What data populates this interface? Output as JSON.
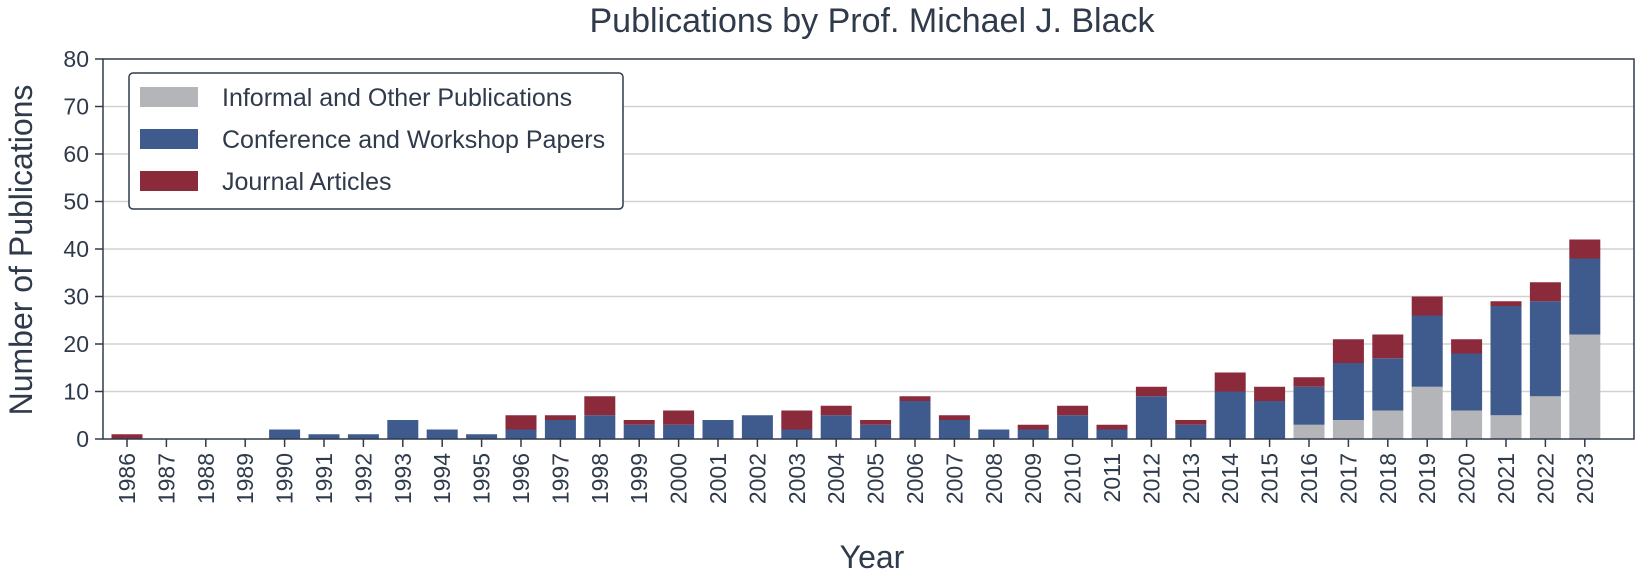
{
  "chart_data": {
    "type": "bar",
    "stacked": true,
    "title": "Publications by Prof. Michael J. Black",
    "xlabel": "Year",
    "ylabel": "Number of Publications",
    "ylim": [
      0,
      80
    ],
    "yticks": [
      0,
      10,
      20,
      30,
      40,
      50,
      60,
      70,
      80
    ],
    "grid": "y",
    "legend_position": "top-left",
    "categories": [
      "1986",
      "1987",
      "1988",
      "1989",
      "1990",
      "1991",
      "1992",
      "1993",
      "1994",
      "1995",
      "1996",
      "1997",
      "1998",
      "1999",
      "2000",
      "2001",
      "2002",
      "2003",
      "2004",
      "2005",
      "2006",
      "2007",
      "2008",
      "2009",
      "2010",
      "2011",
      "2012",
      "2013",
      "2014",
      "2015",
      "2016",
      "2017",
      "2018",
      "2019",
      "2020",
      "2021",
      "2022",
      "2023"
    ],
    "series": [
      {
        "name": "Informal and Other Publications",
        "color": "#b3b5b8",
        "values": [
          0,
          0,
          0,
          0,
          0,
          0,
          0,
          0,
          0,
          0,
          0,
          0,
          0,
          0,
          0,
          0,
          0,
          0,
          0,
          0,
          0,
          0,
          0,
          0,
          0,
          0,
          0,
          0,
          0,
          0,
          3,
          4,
          6,
          11,
          6,
          5,
          9,
          22
        ]
      },
      {
        "name": "Conference and Workshop Papers",
        "color": "#3f5a8c",
        "values": [
          0,
          0,
          0,
          0,
          2,
          1,
          1,
          4,
          2,
          1,
          2,
          4,
          5,
          3,
          3,
          4,
          5,
          2,
          5,
          3,
          8,
          4,
          2,
          2,
          5,
          2,
          9,
          3,
          10,
          8,
          8,
          12,
          11,
          15,
          12,
          23,
          20,
          16
        ]
      },
      {
        "name": "Journal Articles",
        "color": "#8b2a3a",
        "values": [
          1,
          0,
          0,
          0,
          0,
          0,
          0,
          0,
          0,
          0,
          3,
          1,
          4,
          1,
          3,
          0,
          0,
          4,
          2,
          1,
          1,
          1,
          0,
          1,
          2,
          1,
          2,
          1,
          4,
          3,
          2,
          5,
          5,
          4,
          3,
          1,
          4,
          4
        ]
      }
    ]
  }
}
